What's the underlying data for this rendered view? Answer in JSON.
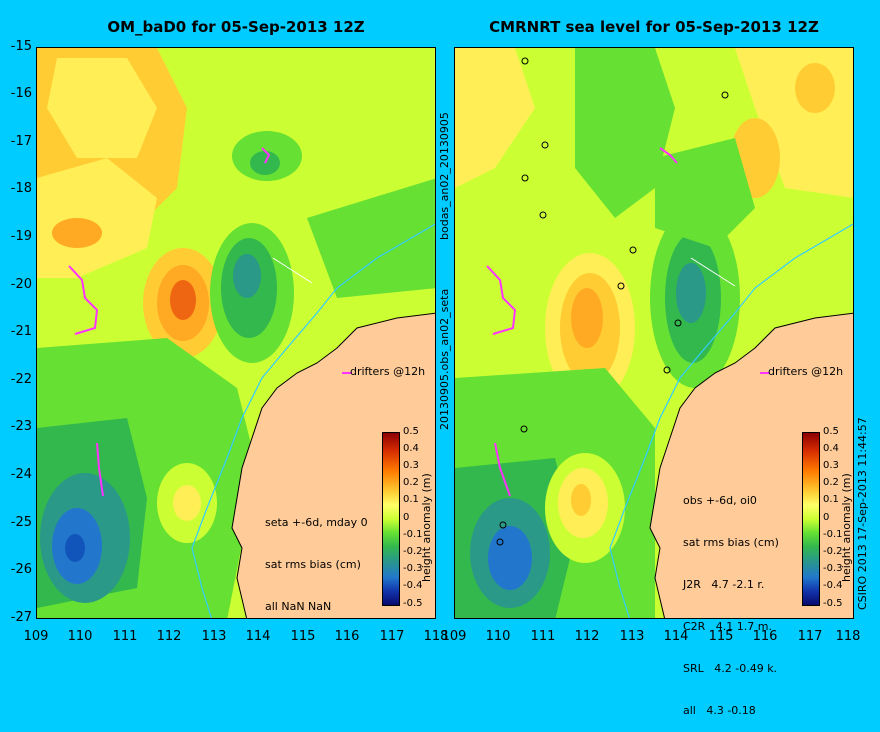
{
  "panels": {
    "left": {
      "title": "OM_baD0 for 05-Sep-2013 12Z",
      "stats": [
        "seta +-6d, mday 0",
        "sat rms bias (cm)",
        "all NaN NaN"
      ],
      "drifters": "drifters @12h"
    },
    "right": {
      "title": "CMRNRT sea level  for 05-Sep-2013 12Z",
      "stats": [
        "obs +-6d, oi0",
        "sat rms bias (cm)",
        "J2R   4.7 -2.1 r.",
        "C2R   4.1 1.7 m.",
        "SRL   4.2 -0.49 k.",
        "all   4.3 -0.18"
      ],
      "drifters": "drifters @12h"
    }
  },
  "axes": {
    "lat_ticks": [
      "-15",
      "-16",
      "-17",
      "-18",
      "-19",
      "-20",
      "-21",
      "-22",
      "-23",
      "-24",
      "-25",
      "-26",
      "-27"
    ],
    "lon_ticks": [
      "109",
      "110",
      "111",
      "112",
      "113",
      "114",
      "115",
      "116",
      "117",
      "118"
    ]
  },
  "colorbar": {
    "title": "height anomaly (m)",
    "ticks": [
      "0.5",
      "0.4",
      "0.3",
      "0.2",
      "0.1",
      "0",
      "-0.1",
      "-0.2",
      "-0.3",
      "-0.4",
      "-0.5"
    ]
  },
  "side_text": {
    "top": "bodas_an02_20130905",
    "bottom": "20130905.obs_an02_seta"
  },
  "credit": "CSIRO 2013   17-Sep-2013 11:44:57",
  "colors": {
    "background": "#00ccff",
    "land": "#ffcc99",
    "drifter": "#ff33ff",
    "coastline": "#000000",
    "isobath": "#33ccff"
  }
}
